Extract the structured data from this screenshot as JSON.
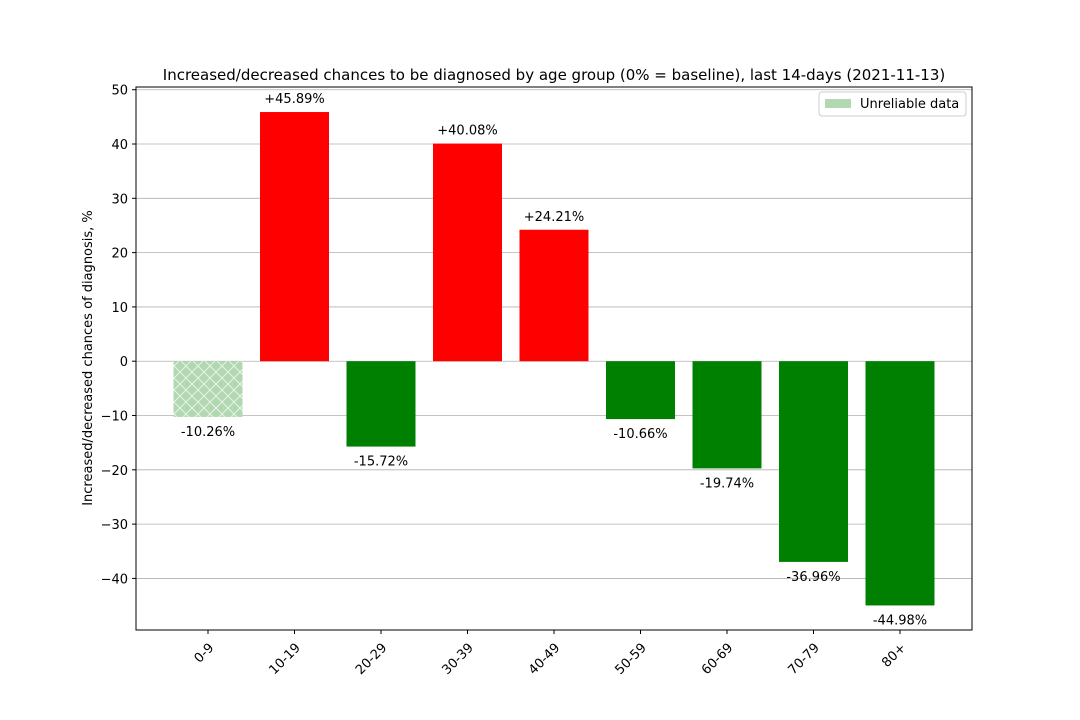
{
  "chart_data": {
    "type": "bar",
    "title": "Increased/decreased chances to be diagnosed by age group (0% = baseline), last 14-days (2021-11-13)",
    "xlabel": "",
    "ylabel": "Increased/decreased chances of diagnosis, %",
    "categories": [
      "0-9",
      "10-19",
      "20-29",
      "30-39",
      "40-49",
      "50-59",
      "60-69",
      "70-79",
      "80+"
    ],
    "values": [
      -10.26,
      45.89,
      -15.72,
      40.08,
      24.21,
      -10.66,
      -19.74,
      -36.96,
      -44.98
    ],
    "value_labels": [
      "-10.26%",
      "+45.89%",
      "-15.72%",
      "+40.08%",
      "+24.21%",
      "-10.66%",
      "-19.74%",
      "-36.96%",
      "-44.98%"
    ],
    "unreliable": [
      true,
      false,
      false,
      false,
      false,
      false,
      false,
      false,
      false
    ],
    "yticks": [
      -40,
      -30,
      -20,
      -10,
      0,
      10,
      20,
      30,
      40,
      50
    ],
    "ytick_labels": [
      "−40",
      "−30",
      "−20",
      "−10",
      "0",
      "10",
      "20",
      "30",
      "40",
      "50"
    ],
    "ylim": [
      -49.5,
      50.5
    ],
    "grid": "y",
    "legend": {
      "placement": "top-right",
      "entries": [
        "Unreliable data"
      ]
    },
    "colors": {
      "positive": "#ff0000",
      "negative": "#008000",
      "unreliable": "#b2d8b2",
      "grid": "#b0b0b0"
    }
  }
}
